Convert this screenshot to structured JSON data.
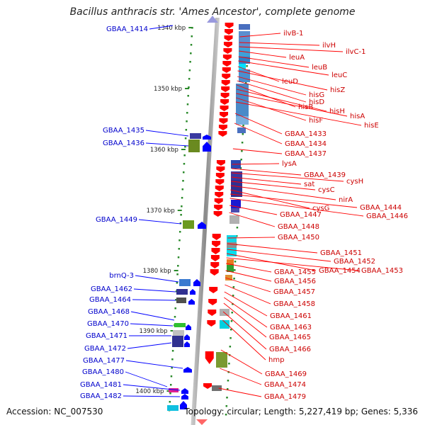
{
  "title": "Bacillus anthracis str. 'Ames Ancestor', complete genome",
  "footer": {
    "accession": "Accession: NC_007530",
    "info": "Topology: circular; Length: 5,227,419 bp; Genes: 5,336"
  },
  "colors": {
    "forward_gene": "#ff0000",
    "reverse_gene": "#0000ff",
    "backbone": "#8a8a8a"
  },
  "scale_ticks": [
    "1340 kbp",
    "1350 kbp",
    "1360 kbp",
    "1370 kbp",
    "1380 kbp",
    "1390 kbp",
    "1400 kbp"
  ],
  "forward_genes": [
    "ilvB-1",
    "ilvH",
    "ilvC-1",
    "leuA",
    "leuB",
    "leuC",
    "leuD",
    "hisZ",
    "hisG",
    "hisD",
    "hisB",
    "hisH",
    "hisA",
    "hisF",
    "hisE",
    "GBAA_1433",
    "GBAA_1434",
    "GBAA_1437",
    "lysA",
    "GBAA_1439",
    "cysH",
    "sat",
    "cysC",
    "nirA",
    "cysG",
    "GBAA_1444",
    "GBAA_1446",
    "GBAA_1447",
    "GBAA_1448",
    "GBAA_1450",
    "GBAA_1451",
    "GBAA_1452",
    "GBAA_1454",
    "GBAA_1453",
    "GBAA_1455",
    "GBAA_1456",
    "GBAA_1457",
    "GBAA_1458",
    "GBAA_1461",
    "GBAA_1463",
    "GBAA_1465",
    "GBAA_1466",
    "hmp",
    "GBAA_1469",
    "GBAA_1474",
    "GBAA_1479"
  ],
  "reverse_genes": [
    "GBAA_1414",
    "GBAA_1435",
    "GBAA_1436",
    "GBAA_1449",
    "brnQ-3",
    "GBAA_1462",
    "GBAA_1464",
    "GBAA_1468",
    "GBAA_1470",
    "GBAA_1471",
    "GBAA_1472",
    "GBAA_1477",
    "GBAA_1480",
    "GBAA_1481",
    "GBAA_1482"
  ]
}
